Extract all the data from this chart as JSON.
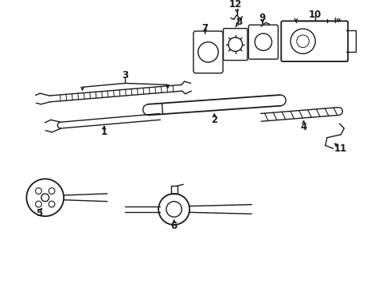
{
  "bg_color": "#ffffff",
  "line_color": "#1a1a1a",
  "lw": 1.0,
  "lw2": 1.3,
  "label_fontsize": 8.5,
  "fig_width": 4.9,
  "fig_height": 3.6,
  "dpi": 100
}
